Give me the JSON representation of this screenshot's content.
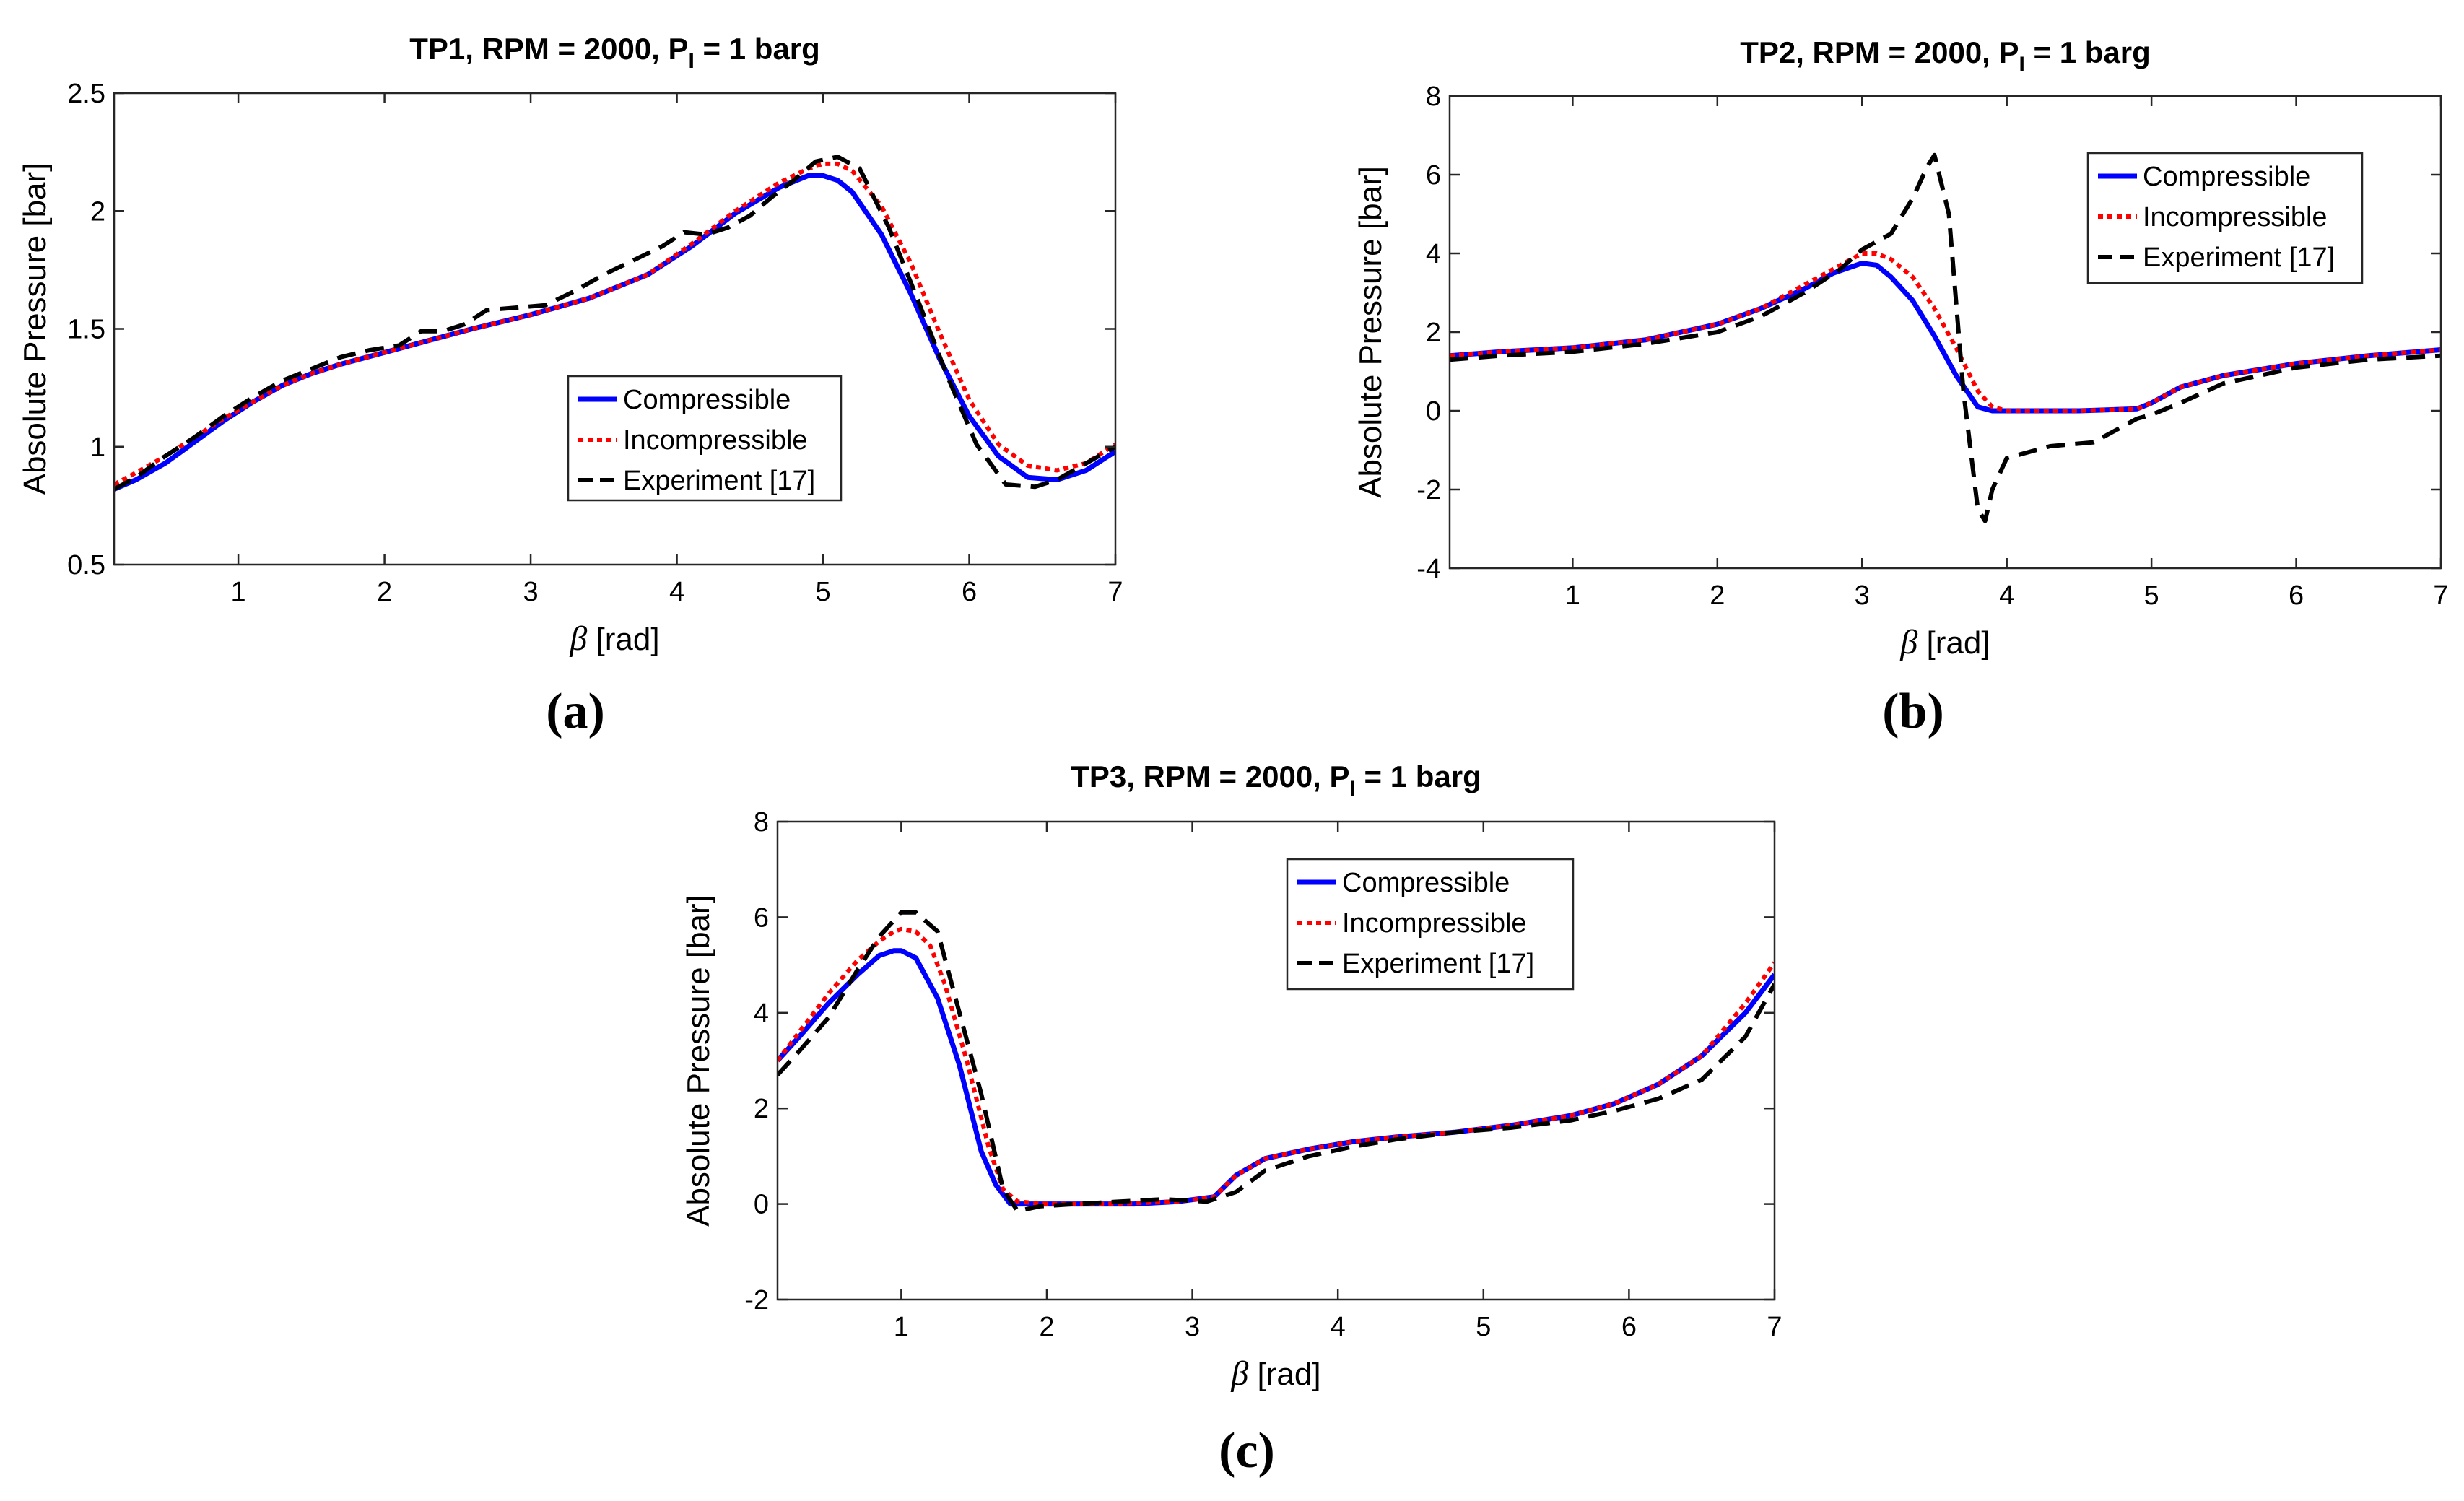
{
  "figure": {
    "panel_labels": [
      "(a)",
      "(b)",
      "(c)"
    ]
  },
  "colors": {
    "compressible": "#0000ff",
    "incompressible": "#ff0000",
    "experiment": "#000000"
  },
  "chart_data": [
    {
      "type": "line",
      "title_main": "TP1, RPM = 2000, P",
      "title_sub": "I",
      "title_tail": " = 1 barg",
      "xlabel_symbol": "β",
      "xlabel_unit": " [rad]",
      "ylabel": "Absolute Pressure [bar]",
      "xlim": [
        0.15,
        7
      ],
      "ylim": [
        0.5,
        2.5
      ],
      "xticks": [
        1,
        2,
        3,
        4,
        5,
        6,
        7
      ],
      "yticks": [
        0.5,
        1,
        1.5,
        2,
        2.5
      ],
      "ytick_labels": [
        "0.5",
        "1",
        "1.5",
        "2",
        "2.5"
      ],
      "legend": {
        "position": "center-right",
        "entries": [
          "Compressible",
          "Incompressible",
          "Experiment [17]"
        ]
      },
      "series": [
        {
          "name": "Compressible",
          "style": "solid",
          "x": [
            0.15,
            0.3,
            0.5,
            0.7,
            0.9,
            1.1,
            1.3,
            1.5,
            1.7,
            2.0,
            2.3,
            2.6,
            3.0,
            3.4,
            3.8,
            4.1,
            4.4,
            4.7,
            4.9,
            5.0,
            5.1,
            5.2,
            5.4,
            5.6,
            5.8,
            6.0,
            6.2,
            6.4,
            6.6,
            6.8,
            7.0
          ],
          "y": [
            0.82,
            0.86,
            0.93,
            1.02,
            1.11,
            1.19,
            1.26,
            1.31,
            1.35,
            1.4,
            1.45,
            1.5,
            1.56,
            1.63,
            1.73,
            1.85,
            1.99,
            2.1,
            2.15,
            2.15,
            2.13,
            2.08,
            1.9,
            1.65,
            1.37,
            1.13,
            0.96,
            0.87,
            0.86,
            0.9,
            0.98
          ]
        },
        {
          "name": "Incompressible",
          "style": "dotted",
          "x": [
            0.15,
            0.3,
            0.5,
            0.7,
            0.9,
            1.1,
            1.3,
            1.5,
            1.7,
            2.0,
            2.3,
            2.6,
            3.0,
            3.4,
            3.8,
            4.1,
            4.4,
            4.7,
            4.9,
            5.0,
            5.1,
            5.2,
            5.4,
            5.6,
            5.8,
            6.0,
            6.2,
            6.4,
            6.6,
            6.8,
            7.0
          ],
          "y": [
            0.84,
            0.89,
            0.96,
            1.04,
            1.12,
            1.19,
            1.26,
            1.31,
            1.35,
            1.4,
            1.45,
            1.5,
            1.56,
            1.63,
            1.73,
            1.86,
            2.0,
            2.12,
            2.18,
            2.2,
            2.2,
            2.17,
            2.02,
            1.78,
            1.48,
            1.2,
            1.01,
            0.92,
            0.9,
            0.93,
            1.01
          ]
        },
        {
          "name": "Experiment [17]",
          "style": "dashed",
          "x": [
            0.15,
            0.3,
            0.5,
            0.7,
            0.9,
            1.1,
            1.3,
            1.5,
            1.7,
            1.9,
            2.1,
            2.25,
            2.4,
            2.55,
            2.7,
            2.9,
            3.1,
            3.3,
            3.5,
            3.7,
            3.9,
            4.05,
            4.2,
            4.35,
            4.5,
            4.65,
            4.8,
            4.95,
            5.1,
            5.25,
            5.45,
            5.65,
            5.85,
            6.05,
            6.25,
            6.45,
            6.6,
            6.8,
            7.0
          ],
          "y": [
            0.82,
            0.87,
            0.96,
            1.04,
            1.13,
            1.21,
            1.28,
            1.33,
            1.38,
            1.41,
            1.43,
            1.49,
            1.49,
            1.52,
            1.58,
            1.59,
            1.6,
            1.66,
            1.73,
            1.79,
            1.85,
            1.91,
            1.9,
            1.93,
            1.98,
            2.06,
            2.13,
            2.21,
            2.23,
            2.18,
            1.93,
            1.62,
            1.3,
            1.01,
            0.84,
            0.83,
            0.86,
            0.93,
            1.0
          ]
        }
      ]
    },
    {
      "type": "line",
      "title_main": "TP2, RPM = 2000, P",
      "title_sub": "I",
      "title_tail": " = 1 barg",
      "xlabel_symbol": "β",
      "xlabel_unit": " [rad]",
      "ylabel": "Absolute Pressure [bar]",
      "xlim": [
        0.15,
        7
      ],
      "ylim": [
        -4,
        8
      ],
      "xticks": [
        1,
        2,
        3,
        4,
        5,
        6,
        7
      ],
      "yticks": [
        -4,
        -2,
        0,
        2,
        4,
        6,
        8
      ],
      "ytick_labels": [
        "-4",
        "-2",
        "0",
        "2",
        "4",
        "6",
        "8"
      ],
      "legend": {
        "position": "top-right",
        "entries": [
          "Compressible",
          "Incompressible",
          "Experiment [17]"
        ]
      },
      "series": [
        {
          "name": "Compressible",
          "style": "solid",
          "x": [
            0.15,
            0.5,
            1.0,
            1.5,
            2.0,
            2.3,
            2.6,
            2.8,
            3.0,
            3.1,
            3.2,
            3.35,
            3.5,
            3.65,
            3.8,
            3.9,
            4.0,
            4.5,
            4.9,
            5.0,
            5.2,
            5.5,
            6.0,
            6.5,
            7.0
          ],
          "y": [
            1.4,
            1.5,
            1.6,
            1.8,
            2.2,
            2.6,
            3.1,
            3.5,
            3.75,
            3.7,
            3.4,
            2.8,
            1.9,
            0.9,
            0.1,
            0.0,
            0.0,
            0.0,
            0.05,
            0.2,
            0.6,
            0.9,
            1.2,
            1.4,
            1.55
          ]
        },
        {
          "name": "Incompressible",
          "style": "dotted",
          "x": [
            0.15,
            0.5,
            1.0,
            1.5,
            2.0,
            2.3,
            2.6,
            2.8,
            3.0,
            3.1,
            3.2,
            3.35,
            3.5,
            3.65,
            3.8,
            3.9,
            4.0,
            4.5,
            4.9,
            5.0,
            5.2,
            5.5,
            6.0,
            6.5,
            7.0
          ],
          "y": [
            1.4,
            1.5,
            1.6,
            1.8,
            2.2,
            2.6,
            3.2,
            3.6,
            4.0,
            4.0,
            3.85,
            3.4,
            2.6,
            1.6,
            0.5,
            0.1,
            0.0,
            0.0,
            0.05,
            0.2,
            0.6,
            0.9,
            1.2,
            1.4,
            1.55
          ]
        },
        {
          "name": "Experiment [17]",
          "style": "dashed",
          "x": [
            0.15,
            0.5,
            1.0,
            1.5,
            2.0,
            2.3,
            2.6,
            2.85,
            3.0,
            3.2,
            3.35,
            3.45,
            3.5,
            3.6,
            3.7,
            3.8,
            3.85,
            3.9,
            4.0,
            4.3,
            4.6,
            4.9,
            5.0,
            5.2,
            5.5,
            6.0,
            6.5,
            7.0
          ],
          "y": [
            1.3,
            1.4,
            1.5,
            1.7,
            2.0,
            2.4,
            3.0,
            3.6,
            4.1,
            4.5,
            5.4,
            6.2,
            6.5,
            5.0,
            0.5,
            -2.5,
            -2.8,
            -2.0,
            -1.2,
            -0.9,
            -0.8,
            -0.2,
            -0.1,
            0.2,
            0.7,
            1.1,
            1.3,
            1.4
          ]
        }
      ]
    },
    {
      "type": "line",
      "title_main": "TP3, RPM = 2000, P",
      "title_sub": "I",
      "title_tail": " = 1 barg",
      "xlabel_symbol": "β",
      "xlabel_unit": " [rad]",
      "ylabel": "Absolute Pressure [bar]",
      "xlim": [
        0.15,
        7
      ],
      "ylim": [
        -2,
        8
      ],
      "xticks": [
        1,
        2,
        3,
        4,
        5,
        6,
        7
      ],
      "yticks": [
        -2,
        0,
        2,
        4,
        6,
        8
      ],
      "ytick_labels": [
        "-2",
        "0",
        "2",
        "4",
        "6",
        "8"
      ],
      "legend": {
        "position": "top-center",
        "entries": [
          "Compressible",
          "Incompressible",
          "Experiment [17]"
        ]
      },
      "series": [
        {
          "name": "Compressible",
          "style": "solid",
          "x": [
            0.15,
            0.3,
            0.5,
            0.7,
            0.85,
            0.95,
            1.0,
            1.1,
            1.25,
            1.4,
            1.55,
            1.65,
            1.75,
            1.9,
            2.2,
            2.6,
            2.9,
            3.15,
            3.3,
            3.5,
            3.8,
            4.1,
            4.4,
            4.8,
            5.2,
            5.6,
            5.9,
            6.2,
            6.5,
            6.8,
            7.0
          ],
          "y": [
            3.0,
            3.5,
            4.2,
            4.8,
            5.2,
            5.3,
            5.3,
            5.15,
            4.3,
            2.9,
            1.1,
            0.4,
            0.0,
            0.0,
            0.0,
            0.0,
            0.05,
            0.15,
            0.6,
            0.95,
            1.15,
            1.3,
            1.4,
            1.5,
            1.65,
            1.85,
            2.1,
            2.5,
            3.1,
            4.0,
            4.8
          ]
        },
        {
          "name": "Incompressible",
          "style": "dotted",
          "x": [
            0.15,
            0.3,
            0.5,
            0.7,
            0.85,
            0.95,
            1.0,
            1.1,
            1.2,
            1.3,
            1.45,
            1.6,
            1.7,
            1.8,
            2.0,
            2.4,
            2.9,
            3.15,
            3.3,
            3.5,
            3.8,
            4.1,
            4.4,
            4.8,
            5.2,
            5.6,
            5.9,
            6.2,
            6.5,
            6.8,
            7.0
          ],
          "y": [
            3.0,
            3.6,
            4.4,
            5.1,
            5.5,
            5.7,
            5.75,
            5.7,
            5.4,
            4.6,
            3.0,
            1.2,
            0.3,
            0.05,
            0.0,
            0.0,
            0.05,
            0.15,
            0.6,
            0.95,
            1.15,
            1.3,
            1.4,
            1.5,
            1.65,
            1.85,
            2.1,
            2.5,
            3.1,
            4.2,
            5.05
          ]
        },
        {
          "name": "Experiment [17]",
          "style": "dashed",
          "x": [
            0.15,
            0.3,
            0.5,
            0.7,
            0.85,
            1.0,
            1.1,
            1.25,
            1.4,
            1.55,
            1.7,
            1.8,
            1.95,
            2.2,
            2.5,
            2.8,
            3.1,
            3.3,
            3.5,
            3.8,
            4.1,
            4.4,
            4.8,
            5.2,
            5.6,
            5.9,
            6.2,
            6.5,
            6.8,
            7.0
          ],
          "y": [
            2.7,
            3.2,
            3.9,
            4.9,
            5.6,
            6.1,
            6.1,
            5.7,
            4.0,
            2.3,
            0.3,
            -0.15,
            -0.05,
            0.0,
            0.05,
            0.1,
            0.05,
            0.25,
            0.7,
            1.0,
            1.2,
            1.35,
            1.5,
            1.6,
            1.75,
            1.95,
            2.2,
            2.6,
            3.5,
            4.6
          ]
        }
      ]
    }
  ]
}
